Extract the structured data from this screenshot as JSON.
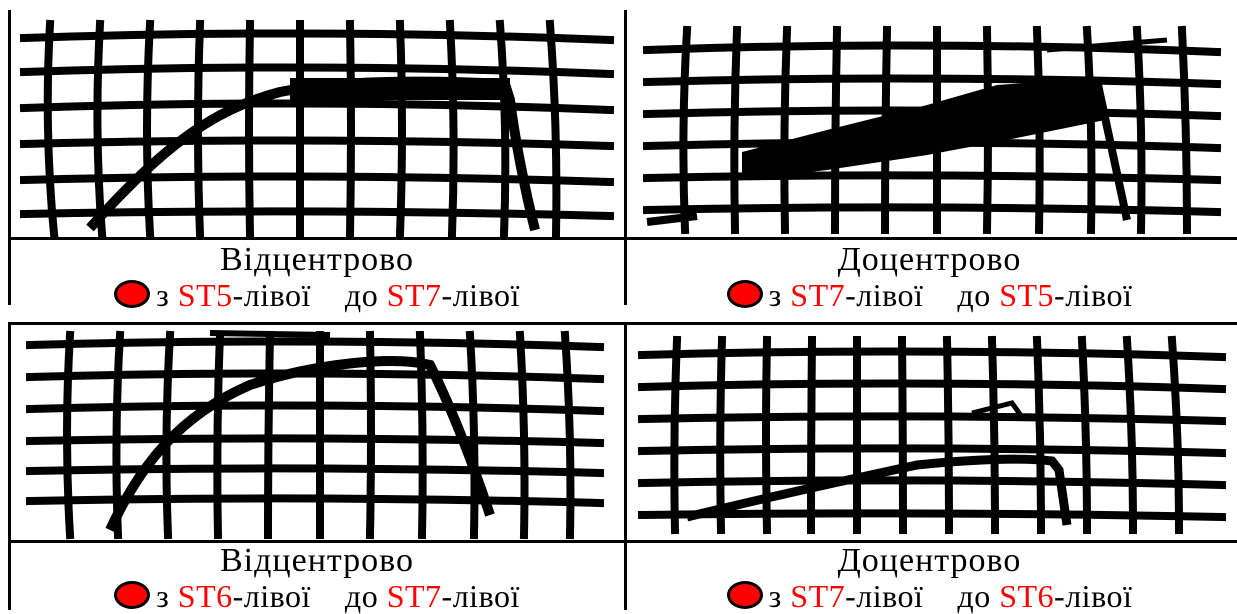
{
  "panels": [
    {
      "title": "Відцентрово",
      "from_prefix": "з",
      "from_code": "ST5",
      "from_suffix": "-лівої",
      "to_prefix": "до",
      "to_code": "ST7",
      "to_suffix": "-лівої"
    },
    {
      "title": "Доцентрово",
      "from_prefix": "з",
      "from_code": "ST7",
      "from_suffix": "-лівої",
      "to_prefix": "до",
      "to_code": "ST5",
      "to_suffix": "-лівої"
    },
    {
      "title": "Відцентрово",
      "from_prefix": "з",
      "from_code": "ST6",
      "from_suffix": "-лівої",
      "to_prefix": "до",
      "to_code": "ST7",
      "to_suffix": "-лівої"
    },
    {
      "title": "Доцентрово",
      "from_prefix": "з",
      "from_code": "ST7",
      "from_suffix": "-лівої",
      "to_prefix": "до",
      "to_code": "ST6",
      "to_suffix": "-лівої"
    }
  ],
  "colors": {
    "marker": "#ff0000",
    "code_text": "#ff0000",
    "ink": "#000000"
  }
}
